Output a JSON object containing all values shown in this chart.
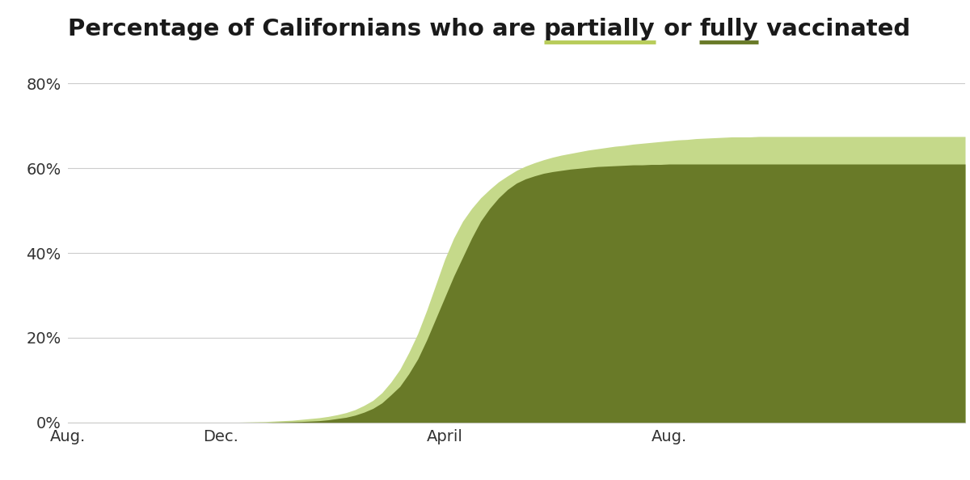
{
  "color_partial": "#c5d98a",
  "color_full": "#697a28",
  "bg_color": "#ffffff",
  "grid_color": "#cccccc",
  "yticks": [
    0,
    20,
    40,
    60,
    80
  ],
  "ytick_labels": [
    "0%",
    "20%",
    "40%",
    "60%",
    "80%"
  ],
  "xtick_labels": [
    "Aug.",
    "Dec.",
    "April",
    "Aug."
  ],
  "ylim_max": 85,
  "title_parts": [
    {
      "text": "Percentage of Californians who are ",
      "underline": false,
      "ul_color": null
    },
    {
      "text": "partially",
      "underline": true,
      "ul_color": "#b8cc5a"
    },
    {
      "text": " or ",
      "underline": false,
      "ul_color": null
    },
    {
      "text": "fully",
      "underline": true,
      "ul_color": "#697a28"
    },
    {
      "text": " vaccinated",
      "underline": false,
      "ul_color": null
    }
  ],
  "x": [
    0,
    1,
    2,
    3,
    4,
    5,
    6,
    7,
    8,
    9,
    10,
    11,
    12,
    13,
    14,
    15,
    16,
    17,
    18,
    19,
    20,
    21,
    22,
    23,
    24,
    25,
    26,
    27,
    28,
    29,
    30,
    31,
    32,
    33,
    34,
    35,
    36,
    37,
    38,
    39,
    40,
    41,
    42,
    43,
    44,
    45,
    46,
    47,
    48,
    49,
    50,
    51,
    52,
    53,
    54,
    55,
    56,
    57,
    58,
    59,
    60,
    61,
    62,
    63,
    64,
    65,
    66,
    67,
    68,
    69,
    70,
    71,
    72,
    73,
    74,
    75,
    76,
    77,
    78,
    79,
    80,
    81,
    82,
    83,
    84,
    85,
    86,
    87,
    88,
    89,
    90,
    91,
    92,
    93,
    94,
    95,
    96,
    97,
    98,
    99,
    100
  ],
  "partial": [
    0.05,
    0.05,
    0.05,
    0.05,
    0.05,
    0.05,
    0.05,
    0.05,
    0.05,
    0.05,
    0.05,
    0.05,
    0.05,
    0.05,
    0.05,
    0.05,
    0.05,
    0.05,
    0.05,
    0.05,
    0.1,
    0.15,
    0.2,
    0.3,
    0.4,
    0.5,
    0.7,
    0.9,
    1.1,
    1.4,
    1.8,
    2.3,
    3.0,
    4.0,
    5.2,
    7.0,
    9.5,
    12.5,
    16.5,
    21.0,
    26.5,
    32.5,
    38.5,
    43.5,
    47.5,
    50.5,
    53.0,
    55.0,
    56.8,
    58.2,
    59.5,
    60.5,
    61.3,
    62.0,
    62.6,
    63.1,
    63.5,
    63.9,
    64.3,
    64.6,
    64.9,
    65.2,
    65.4,
    65.7,
    65.9,
    66.1,
    66.3,
    66.5,
    66.7,
    66.8,
    67.0,
    67.1,
    67.2,
    67.3,
    67.4,
    67.4,
    67.4,
    67.5,
    67.5,
    67.5,
    67.5,
    67.5,
    67.5,
    67.5,
    67.5,
    67.5,
    67.5,
    67.5,
    67.5,
    67.5,
    67.5,
    67.5,
    67.5,
    67.5,
    67.5,
    67.5,
    67.5,
    67.5,
    67.5,
    67.5,
    67.5
  ],
  "full": [
    0.0,
    0.0,
    0.0,
    0.0,
    0.0,
    0.0,
    0.0,
    0.0,
    0.0,
    0.0,
    0.0,
    0.0,
    0.0,
    0.0,
    0.0,
    0.0,
    0.0,
    0.0,
    0.0,
    0.0,
    0.0,
    0.0,
    0.0,
    0.05,
    0.1,
    0.15,
    0.2,
    0.3,
    0.4,
    0.6,
    0.9,
    1.2,
    1.7,
    2.4,
    3.3,
    4.6,
    6.5,
    8.5,
    11.5,
    15.0,
    19.5,
    24.5,
    29.5,
    34.5,
    39.0,
    43.5,
    47.5,
    50.5,
    53.0,
    55.0,
    56.5,
    57.5,
    58.2,
    58.8,
    59.2,
    59.5,
    59.8,
    60.0,
    60.2,
    60.4,
    60.5,
    60.6,
    60.7,
    60.8,
    60.8,
    60.9,
    60.9,
    61.0,
    61.0,
    61.0,
    61.0,
    61.0,
    61.0,
    61.0,
    61.0,
    61.0,
    61.0,
    61.0,
    61.0,
    61.0,
    61.0,
    61.0,
    61.0,
    61.0,
    61.0,
    61.0,
    61.0,
    61.0,
    61.0,
    61.0,
    61.0,
    61.0,
    61.0,
    61.0,
    61.0,
    61.0,
    61.0,
    61.0,
    61.0,
    61.0,
    61.0
  ],
  "xtick_positions": [
    0,
    17,
    42,
    67
  ],
  "title_fontsize": 21,
  "tick_fontsize": 14
}
